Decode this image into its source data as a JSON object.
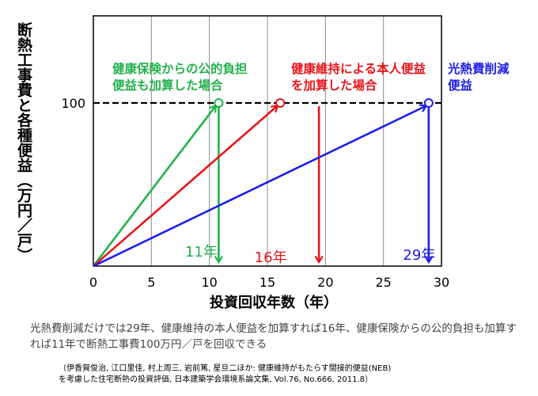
{
  "chart_data": {
    "type": "line",
    "ylabel": "断熱工事費と各種便益（万円／戸）",
    "xlabel": "投資回収年数（年）",
    "xlim": [
      0,
      30
    ],
    "xticks": [
      "0",
      "5",
      "10",
      "15",
      "20",
      "25",
      "30"
    ],
    "ytick": "100",
    "y_target": 100,
    "grid": "vertical",
    "series": [
      {
        "name": "健康保険からの公的負担便益も加算した場合",
        "color": "#22b14c",
        "payback_year": 10.8,
        "year_label": "11年"
      },
      {
        "name": "健康維持による本人便益を加算した場合",
        "color": "#e8141b",
        "payback_year": 16.1,
        "year_label": "16年"
      },
      {
        "name": "光熱費削減便益",
        "color": "#1e1ee6",
        "payback_year": 28.9,
        "year_label": "29年"
      }
    ]
  },
  "caption": "光熱費削減だけでは29年、健康維持の本人便益を加算すれば16年、健康保険からの公的負担も加算すれば11年で断熱工事費100万円／戸を回収できる",
  "reference_line1": "（伊香賀俊治, 江口里佳, 村上周三, 岩前篤, 星旦二ほか:  健康維持がもたらす間接的便益(NEB)",
  "reference_line2": "を考慮した住宅断熱の投資評価, 日本建築学会環境系論文集, Vol.76, No.666, 2011.8）"
}
